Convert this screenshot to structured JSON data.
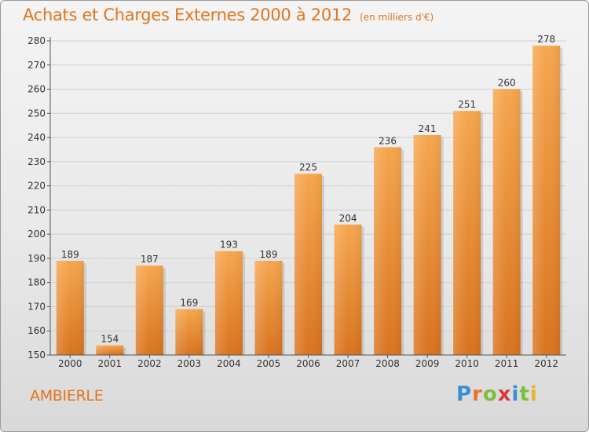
{
  "title": "Achats et Charges Externes 2000 à 2012",
  "subtitle": "(en milliers d'€)",
  "commune": "AMBIERLE",
  "brand": {
    "letters": [
      {
        "ch": "P",
        "color": "#3a8ed8"
      },
      {
        "ch": "r",
        "color": "#e8742a"
      },
      {
        "ch": "o",
        "color": "#7cbf3a"
      },
      {
        "ch": "x",
        "color": "#d83a3a"
      },
      {
        "ch": "i",
        "color": "#3a8ed8"
      },
      {
        "ch": "t",
        "color": "#7cbf3a"
      },
      {
        "ch": "i",
        "color": "#e8b22a"
      }
    ]
  },
  "colors": {
    "bar_top": "#f6a64e",
    "bar_bottom": "#d9731e",
    "grid": "#cfcfcf",
    "axis": "#555555",
    "text": "#333333"
  },
  "chart_data": {
    "type": "bar",
    "title": "Achats et Charges Externes 2000 à 2012",
    "subtitle": "(en milliers d'€)",
    "categories": [
      "2000",
      "2001",
      "2002",
      "2003",
      "2004",
      "2005",
      "2006",
      "2007",
      "2008",
      "2009",
      "2010",
      "2011",
      "2012"
    ],
    "values": [
      189,
      154,
      187,
      169,
      193,
      189,
      225,
      204,
      236,
      241,
      251,
      260,
      278
    ],
    "ylim": [
      150,
      280
    ],
    "yticks": [
      150,
      160,
      170,
      180,
      190,
      200,
      210,
      220,
      230,
      240,
      250,
      260,
      270,
      280
    ],
    "grid": true
  }
}
